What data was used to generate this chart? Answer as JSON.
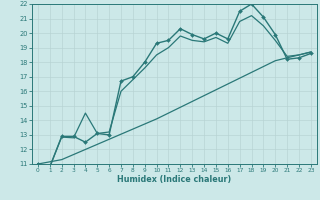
{
  "xlabel": "Humidex (Indice chaleur)",
  "bg_color": "#cce8e8",
  "grid_color": "#b8d4d4",
  "line_color": "#2a7878",
  "xlim": [
    -0.5,
    23.5
  ],
  "ylim": [
    11,
    22
  ],
  "xticks": [
    0,
    1,
    2,
    3,
    4,
    5,
    6,
    7,
    8,
    9,
    10,
    11,
    12,
    13,
    14,
    15,
    16,
    17,
    18,
    19,
    20,
    21,
    22,
    23
  ],
  "yticks": [
    11,
    12,
    13,
    14,
    15,
    16,
    17,
    18,
    19,
    20,
    21,
    22
  ],
  "series": [
    {
      "x": [
        0,
        1,
        2,
        3,
        4,
        5,
        6,
        7,
        8,
        9,
        10,
        11,
        12,
        13,
        14,
        15,
        16,
        17,
        18,
        19,
        20,
        21,
        22,
        23
      ],
      "y": [
        11.0,
        10.8,
        12.9,
        12.9,
        12.5,
        13.1,
        13.0,
        16.7,
        17.0,
        18.0,
        19.3,
        19.5,
        20.3,
        19.9,
        19.6,
        20.0,
        19.6,
        21.5,
        22.0,
        21.1,
        19.9,
        18.2,
        18.3,
        18.6
      ],
      "marker": "D",
      "marker_size": 2.0,
      "linewidth": 1.0
    },
    {
      "x": [
        0,
        1,
        2,
        3,
        4,
        5,
        6,
        7,
        8,
        9,
        10,
        11,
        12,
        13,
        14,
        15,
        16,
        17,
        18,
        19,
        20,
        21,
        22,
        23
      ],
      "y": [
        11.0,
        11.15,
        11.3,
        11.65,
        12.0,
        12.35,
        12.7,
        13.05,
        13.4,
        13.75,
        14.1,
        14.5,
        14.9,
        15.3,
        15.7,
        16.1,
        16.5,
        16.9,
        17.3,
        17.7,
        18.1,
        18.3,
        18.5,
        18.7
      ],
      "marker": "",
      "marker_size": 0,
      "linewidth": 0.9
    },
    {
      "x": [
        0,
        1,
        2,
        3,
        4,
        5,
        6,
        7,
        8,
        9,
        10,
        11,
        12,
        13,
        14,
        15,
        16,
        17,
        18,
        19,
        20,
        21,
        22,
        23
      ],
      "y": [
        11.0,
        10.8,
        12.85,
        12.8,
        14.5,
        13.1,
        13.2,
        16.0,
        16.8,
        17.6,
        18.5,
        19.0,
        19.8,
        19.5,
        19.4,
        19.7,
        19.3,
        20.8,
        21.2,
        20.5,
        19.5,
        18.4,
        18.5,
        18.7
      ],
      "marker": "",
      "marker_size": 0,
      "linewidth": 0.9
    }
  ]
}
